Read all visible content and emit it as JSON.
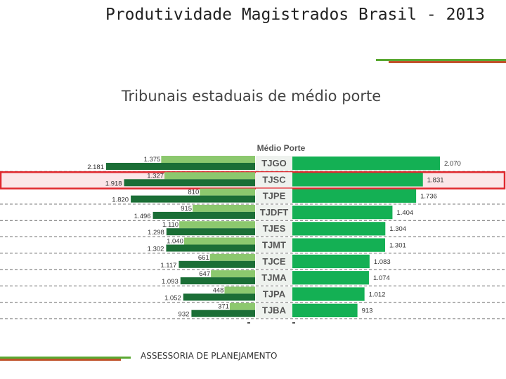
{
  "page": {
    "title": "Produtividade Magistrados Brasil - 2013",
    "subtitle": "Tribunais estaduais de médio porte",
    "footer": "ASSESSORIA DE PLANEJAMENTO"
  },
  "colors": {
    "light_green": "#8cc86e",
    "dark_green": "#1b6e36",
    "right_green": "#14b054",
    "highlight_red": "#e0282e",
    "highlight_fill": "#fbe6e8"
  },
  "chart_data": {
    "type": "bar",
    "title": "Médio Porte",
    "highlight": "TJSC",
    "categories": [
      "TJGO",
      "TJSC",
      "TJPE",
      "TJDFT",
      "TJES",
      "TJMT",
      "TJCE",
      "TJMA",
      "TJPA",
      "TJBA"
    ],
    "series": [
      {
        "name": "left_light",
        "values": [
          1375,
          1327,
          810,
          915,
          1110,
          1040,
          661,
          647,
          448,
          371
        ]
      },
      {
        "name": "left_dark",
        "values": [
          2181,
          1918,
          1820,
          1496,
          1298,
          1302,
          1117,
          1093,
          1052,
          932
        ]
      },
      {
        "name": "right",
        "values": [
          2070,
          1831,
          1736,
          1404,
          1304,
          1301,
          1083,
          1074,
          1012,
          913
        ]
      }
    ],
    "labels": {
      "left_light": [
        "1.375",
        "1.327",
        "810",
        "915",
        "1.110",
        "1.040",
        "661",
        "647",
        "448",
        "371"
      ],
      "left_dark": [
        "2.181",
        "1.918",
        "1.820",
        "1.496",
        "1.298",
        "1.302",
        "1.117",
        "1.093",
        "1.052",
        "932"
      ],
      "right": [
        "2.070",
        "1.831",
        "1.736",
        "1.404",
        "1.304",
        "1.301",
        "1.083",
        "1.074",
        "1.012",
        "913"
      ]
    }
  }
}
